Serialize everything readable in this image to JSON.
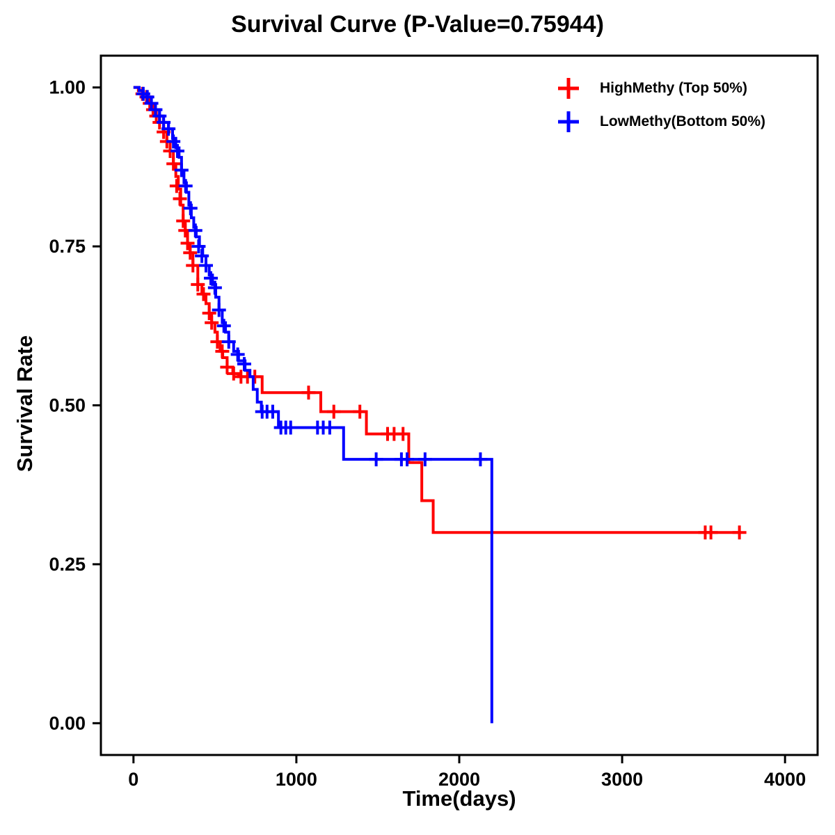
{
  "chart_data": {
    "type": "line",
    "subtype": "kaplan-meier-step-function",
    "title": "Survival Curve (P-Value=0.75944)",
    "xlabel": "Time(days)",
    "ylabel": "Survival Rate",
    "xrange": [
      -200,
      4200
    ],
    "yrange": [
      -0.05,
      1.05
    ],
    "xticks": {
      "values": [
        0,
        1000,
        2000,
        3000,
        4000
      ],
      "labels": [
        "0",
        "1000",
        "2000",
        "3000",
        "4000"
      ]
    },
    "yticks": {
      "values": [
        0.0,
        0.25,
        0.5,
        0.75,
        1.0
      ],
      "labels": [
        "0.00",
        "0.25",
        "0.50",
        "0.75",
        "1.00"
      ]
    },
    "grid": false,
    "legend_position": "top-right",
    "axis_color": "#000000",
    "background_color": "#ffffff",
    "series": [
      {
        "name": "HighMethy (Top 50%)",
        "color": "#ff0000",
        "points": [
          [
            0,
            1.0
          ],
          [
            30,
            0.995
          ],
          [
            55,
            0.99
          ],
          [
            80,
            0.985
          ],
          [
            100,
            0.975
          ],
          [
            120,
            0.965
          ],
          [
            140,
            0.955
          ],
          [
            160,
            0.945
          ],
          [
            185,
            0.93
          ],
          [
            205,
            0.915
          ],
          [
            225,
            0.9
          ],
          [
            245,
            0.88
          ],
          [
            260,
            0.86
          ],
          [
            275,
            0.84
          ],
          [
            290,
            0.815
          ],
          [
            305,
            0.79
          ],
          [
            318,
            0.775
          ],
          [
            332,
            0.755
          ],
          [
            348,
            0.74
          ],
          [
            365,
            0.72
          ],
          [
            395,
            0.69
          ],
          [
            420,
            0.675
          ],
          [
            445,
            0.66
          ],
          [
            465,
            0.645
          ],
          [
            480,
            0.63
          ],
          [
            500,
            0.615
          ],
          [
            515,
            0.6
          ],
          [
            532,
            0.585
          ],
          [
            548,
            0.575
          ],
          [
            575,
            0.56
          ],
          [
            610,
            0.55
          ],
          [
            645,
            0.545
          ],
          [
            790,
            0.52
          ],
          [
            1150,
            0.49
          ],
          [
            1430,
            0.455
          ],
          [
            1690,
            0.41
          ],
          [
            1770,
            0.35
          ],
          [
            1840,
            0.3
          ],
          [
            3730,
            0.3
          ]
        ],
        "censor_marks": [
          [
            55,
            0.99
          ],
          [
            80,
            0.985
          ],
          [
            100,
            0.975
          ],
          [
            120,
            0.965
          ],
          [
            140,
            0.955
          ],
          [
            160,
            0.945
          ],
          [
            185,
            0.93
          ],
          [
            205,
            0.915
          ],
          [
            225,
            0.9
          ],
          [
            245,
            0.88
          ],
          [
            265,
            0.845
          ],
          [
            285,
            0.825
          ],
          [
            305,
            0.79
          ],
          [
            318,
            0.775
          ],
          [
            332,
            0.755
          ],
          [
            348,
            0.74
          ],
          [
            365,
            0.72
          ],
          [
            395,
            0.69
          ],
          [
            430,
            0.675
          ],
          [
            465,
            0.645
          ],
          [
            480,
            0.63
          ],
          [
            515,
            0.6
          ],
          [
            545,
            0.585
          ],
          [
            575,
            0.56
          ],
          [
            615,
            0.55
          ],
          [
            660,
            0.545
          ],
          [
            700,
            0.545
          ],
          [
            745,
            0.545
          ],
          [
            1075,
            0.52
          ],
          [
            1230,
            0.49
          ],
          [
            1390,
            0.49
          ],
          [
            1560,
            0.455
          ],
          [
            1600,
            0.455
          ],
          [
            1655,
            0.455
          ],
          [
            3510,
            0.3
          ],
          [
            3545,
            0.3
          ],
          [
            3720,
            0.3
          ]
        ]
      },
      {
        "name": "LowMethy(Bottom 50%)",
        "color": "#0000ff",
        "points": [
          [
            0,
            1.0
          ],
          [
            35,
            0.995
          ],
          [
            60,
            0.99
          ],
          [
            85,
            0.985
          ],
          [
            110,
            0.975
          ],
          [
            135,
            0.965
          ],
          [
            160,
            0.955
          ],
          [
            185,
            0.945
          ],
          [
            215,
            0.935
          ],
          [
            240,
            0.92
          ],
          [
            260,
            0.905
          ],
          [
            280,
            0.89
          ],
          [
            295,
            0.87
          ],
          [
            310,
            0.85
          ],
          [
            325,
            0.835
          ],
          [
            340,
            0.815
          ],
          [
            355,
            0.795
          ],
          [
            370,
            0.78
          ],
          [
            385,
            0.765
          ],
          [
            405,
            0.75
          ],
          [
            425,
            0.735
          ],
          [
            445,
            0.72
          ],
          [
            465,
            0.705
          ],
          [
            485,
            0.69
          ],
          [
            505,
            0.67
          ],
          [
            525,
            0.65
          ],
          [
            545,
            0.63
          ],
          [
            565,
            0.615
          ],
          [
            585,
            0.6
          ],
          [
            615,
            0.585
          ],
          [
            645,
            0.57
          ],
          [
            685,
            0.555
          ],
          [
            715,
            0.545
          ],
          [
            735,
            0.525
          ],
          [
            760,
            0.505
          ],
          [
            785,
            0.49
          ],
          [
            890,
            0.465
          ],
          [
            1290,
            0.415
          ],
          [
            2195,
            0.415
          ],
          [
            2200,
            0.0
          ]
        ],
        "censor_marks": [
          [
            60,
            0.99
          ],
          [
            85,
            0.985
          ],
          [
            110,
            0.975
          ],
          [
            135,
            0.965
          ],
          [
            160,
            0.955
          ],
          [
            185,
            0.945
          ],
          [
            215,
            0.935
          ],
          [
            245,
            0.915
          ],
          [
            270,
            0.9
          ],
          [
            295,
            0.87
          ],
          [
            320,
            0.845
          ],
          [
            350,
            0.81
          ],
          [
            380,
            0.775
          ],
          [
            400,
            0.75
          ],
          [
            420,
            0.735
          ],
          [
            445,
            0.72
          ],
          [
            475,
            0.7
          ],
          [
            500,
            0.685
          ],
          [
            525,
            0.65
          ],
          [
            555,
            0.625
          ],
          [
            585,
            0.6
          ],
          [
            640,
            0.58
          ],
          [
            680,
            0.565
          ],
          [
            790,
            0.49
          ],
          [
            820,
            0.49
          ],
          [
            855,
            0.49
          ],
          [
            905,
            0.465
          ],
          [
            935,
            0.465
          ],
          [
            965,
            0.465
          ],
          [
            1130,
            0.465
          ],
          [
            1165,
            0.465
          ],
          [
            1205,
            0.465
          ],
          [
            1490,
            0.415
          ],
          [
            1645,
            0.415
          ],
          [
            1680,
            0.415
          ],
          [
            1790,
            0.415
          ],
          [
            2130,
            0.415
          ]
        ]
      }
    ]
  }
}
